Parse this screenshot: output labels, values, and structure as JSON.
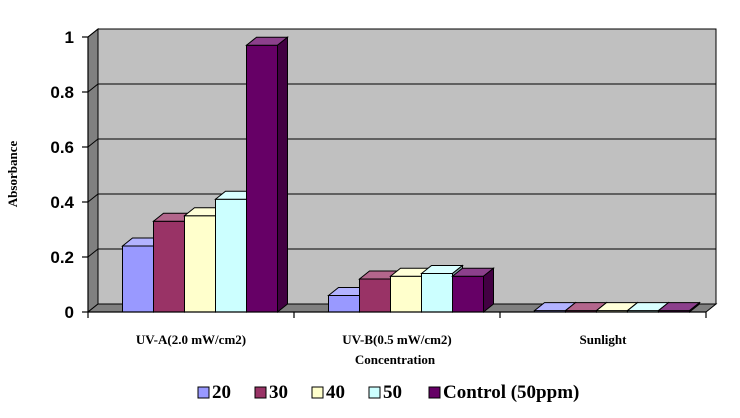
{
  "chart_data": {
    "type": "bar",
    "categories": [
      "UV-A(2.0 mW/cm2)",
      "UV-B(0.5 mW/cm2)",
      "Sunlight"
    ],
    "xlabel": "Concentration",
    "ylabel": "Absorbance",
    "ylim": [
      0,
      1
    ],
    "yticks": [
      "0",
      "0.2",
      "0.4",
      "0.6",
      "0.8",
      "1"
    ],
    "grid": true,
    "legend_position": "bottom",
    "series": [
      {
        "name": "20",
        "values": [
          0.24,
          0.06,
          0.005
        ],
        "color": "#9999ff"
      },
      {
        "name": "30",
        "values": [
          0.33,
          0.12,
          0.005
        ],
        "color": "#993366"
      },
      {
        "name": "40",
        "values": [
          0.35,
          0.13,
          0.005
        ],
        "color": "#ffffcc"
      },
      {
        "name": "50",
        "values": [
          0.41,
          0.14,
          0.005
        ],
        "color": "#ccffff"
      },
      {
        "name": "Control (50ppm)",
        "values": [
          0.97,
          0.13,
          0.005
        ],
        "color": "#660066"
      }
    ],
    "colors": {
      "plot_background": "#c0c0c0",
      "floor": "#808080"
    }
  }
}
